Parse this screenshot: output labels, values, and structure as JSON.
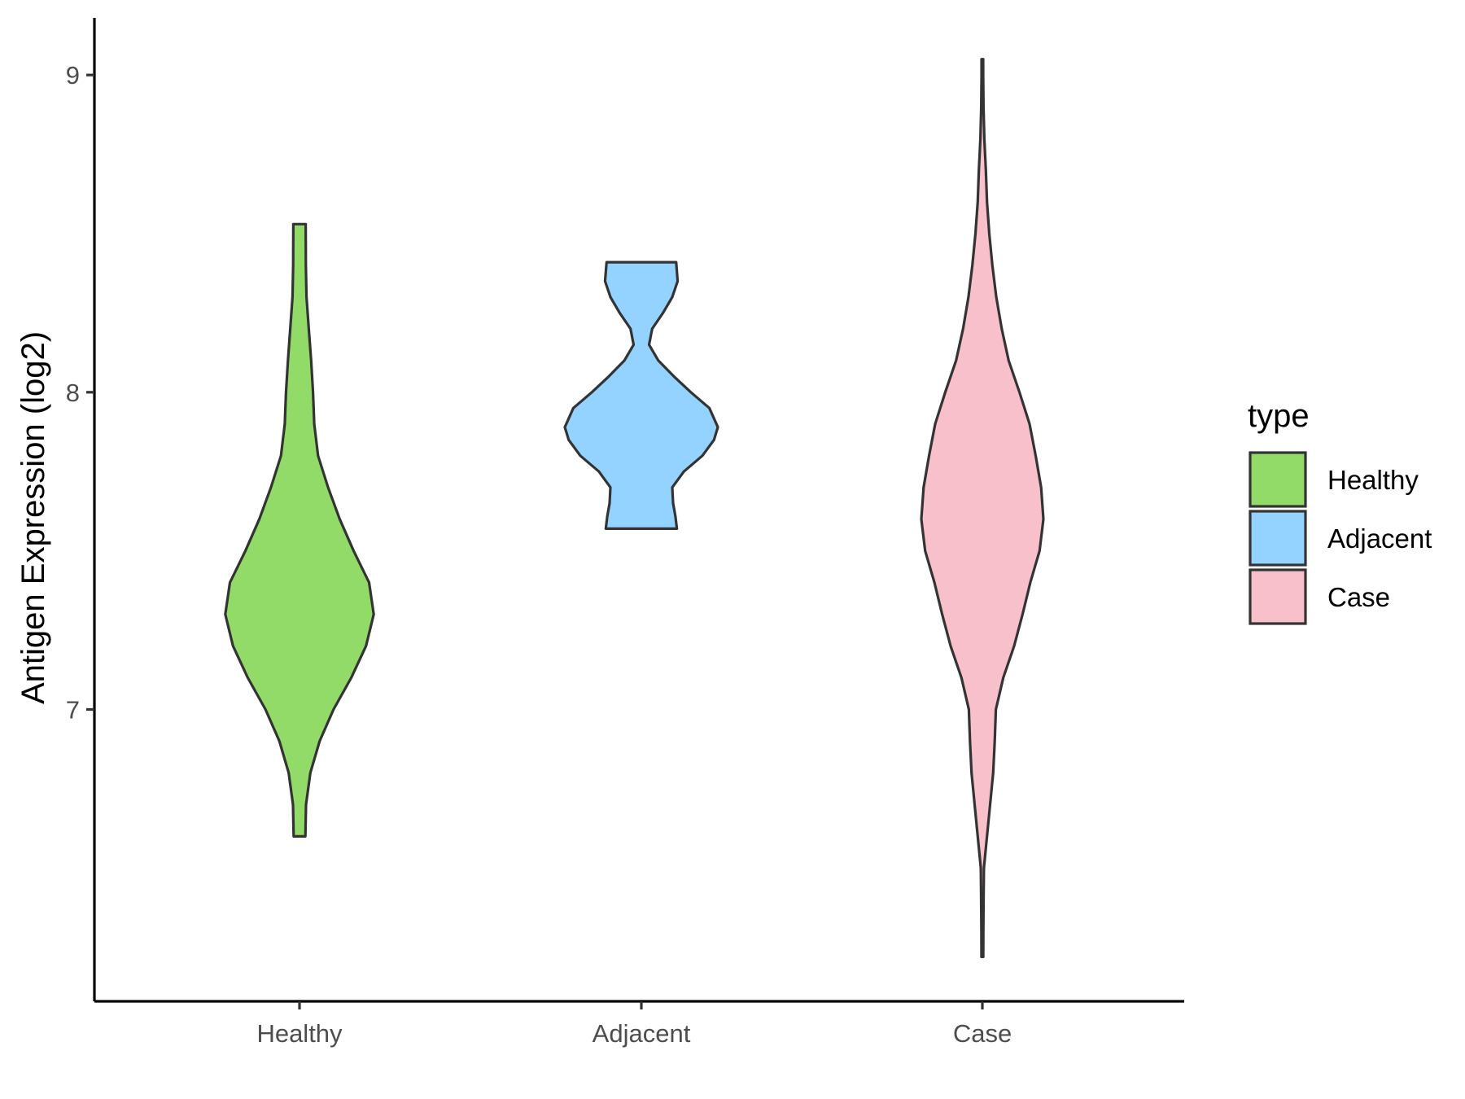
{
  "chart_data": {
    "type": "violin",
    "title": "",
    "xlabel": "",
    "ylabel": "Antigen Expression (log2)",
    "categories": [
      "Healthy",
      "Adjacent",
      "Case"
    ],
    "ylim": [
      6.08,
      9.18
    ],
    "yticks": [
      7,
      8,
      9
    ],
    "grid": false,
    "legend": {
      "title": "type",
      "position": "right",
      "entries": [
        "Healthy",
        "Adjacent",
        "Case"
      ]
    },
    "colors": {
      "Healthy": "#93db69",
      "Adjacent": "#94d3ff",
      "Case": "#f7c0cb"
    },
    "series": [
      {
        "name": "Healthy",
        "min": 6.6,
        "max": 8.53,
        "density_profile": [
          [
            6.6,
            0.076
          ],
          [
            6.7,
            0.084
          ],
          [
            6.8,
            0.14
          ],
          [
            6.9,
            0.26
          ],
          [
            7.0,
            0.44
          ],
          [
            7.1,
            0.67
          ],
          [
            7.2,
            0.86
          ],
          [
            7.3,
            0.96
          ],
          [
            7.4,
            0.9
          ],
          [
            7.5,
            0.7
          ],
          [
            7.6,
            0.52
          ],
          [
            7.7,
            0.37
          ],
          [
            7.8,
            0.24
          ],
          [
            7.9,
            0.19
          ],
          [
            8.0,
            0.175
          ],
          [
            8.1,
            0.15
          ],
          [
            8.2,
            0.12
          ],
          [
            8.3,
            0.09
          ],
          [
            8.4,
            0.082
          ],
          [
            8.53,
            0.08
          ]
        ]
      },
      {
        "name": "Adjacent",
        "min": 7.57,
        "max": 8.41,
        "density_profile": [
          [
            7.57,
            0.46
          ],
          [
            7.61,
            0.44
          ],
          [
            7.65,
            0.41
          ],
          [
            7.7,
            0.4
          ],
          [
            7.75,
            0.55
          ],
          [
            7.8,
            0.79
          ],
          [
            7.85,
            0.94
          ],
          [
            7.89,
            0.99
          ],
          [
            7.95,
            0.88
          ],
          [
            8.0,
            0.64
          ],
          [
            8.05,
            0.42
          ],
          [
            8.1,
            0.22
          ],
          [
            8.15,
            0.1
          ],
          [
            8.2,
            0.14
          ],
          [
            8.25,
            0.28
          ],
          [
            8.3,
            0.4
          ],
          [
            8.35,
            0.47
          ],
          [
            8.41,
            0.45
          ]
        ]
      },
      {
        "name": "Case",
        "min": 6.22,
        "max": 9.05,
        "density_profile": [
          [
            6.22,
            0.012
          ],
          [
            6.3,
            0.013
          ],
          [
            6.4,
            0.016
          ],
          [
            6.5,
            0.02
          ],
          [
            6.6,
            0.06
          ],
          [
            6.7,
            0.1
          ],
          [
            6.8,
            0.14
          ],
          [
            6.9,
            0.16
          ],
          [
            7.0,
            0.175
          ],
          [
            7.1,
            0.27
          ],
          [
            7.2,
            0.41
          ],
          [
            7.3,
            0.52
          ],
          [
            7.4,
            0.62
          ],
          [
            7.5,
            0.74
          ],
          [
            7.6,
            0.79
          ],
          [
            7.7,
            0.76
          ],
          [
            7.8,
            0.69
          ],
          [
            7.9,
            0.61
          ],
          [
            8.0,
            0.48
          ],
          [
            8.1,
            0.34
          ],
          [
            8.2,
            0.25
          ],
          [
            8.3,
            0.18
          ],
          [
            8.4,
            0.13
          ],
          [
            8.5,
            0.09
          ],
          [
            8.6,
            0.06
          ],
          [
            8.7,
            0.045
          ],
          [
            8.8,
            0.025
          ],
          [
            8.9,
            0.015
          ],
          [
            9.0,
            0.01
          ],
          [
            9.05,
            0.01
          ]
        ]
      }
    ]
  }
}
